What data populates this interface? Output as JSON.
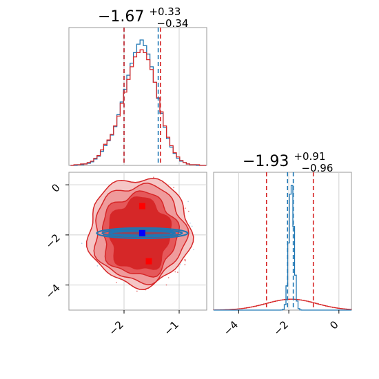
{
  "chart_data": [
    {
      "type": "histogram",
      "panel": "marginal-x",
      "title": {
        "value": "−1.67",
        "sup": "+0.33",
        "sub": "−0.34"
      },
      "xlim": [
        -3.0,
        -0.5
      ],
      "x_ticks": [
        -2,
        -1
      ],
      "bins_x": [
        -2.94,
        -2.88,
        -2.82,
        -2.76,
        -2.7,
        -2.64,
        -2.58,
        -2.52,
        -2.46,
        -2.4,
        -2.34,
        -2.28,
        -2.22,
        -2.16,
        -2.1,
        -2.04,
        -1.98,
        -1.92,
        -1.86,
        -1.8,
        -1.74,
        -1.68,
        -1.62,
        -1.56,
        -1.5,
        -1.44,
        -1.38,
        -1.32,
        -1.26,
        -1.2,
        -1.14,
        -1.08,
        -1.02,
        -0.96,
        -0.9,
        -0.84,
        -0.78,
        -0.72,
        -0.66,
        -0.6,
        -0.54
      ],
      "series": [
        {
          "color": "#1f77b4",
          "values": [
            0,
            0,
            1,
            1,
            2,
            3,
            5,
            9,
            13,
            20,
            28,
            35,
            43,
            55,
            72,
            90,
            108,
            128,
            145,
            160,
            172,
            178,
            170,
            158,
            140,
            118,
            95,
            74,
            54,
            38,
            26,
            17,
            10,
            6,
            4,
            2,
            1,
            1,
            0,
            0,
            0
          ],
          "quantiles": [
            -2.0,
            -1.67,
            -1.38
          ]
        },
        {
          "color": "#d62728",
          "values": [
            0,
            1,
            1,
            2,
            2,
            4,
            6,
            10,
            14,
            22,
            30,
            36,
            44,
            56,
            70,
            88,
            104,
            122,
            140,
            154,
            160,
            164,
            160,
            150,
            136,
            118,
            96,
            76,
            56,
            40,
            28,
            18,
            12,
            7,
            4,
            2,
            1,
            1,
            1,
            0,
            0
          ],
          "quantiles": [
            -2.0,
            -1.67,
            -1.34
          ]
        }
      ]
    },
    {
      "type": "histogram",
      "panel": "marginal-y",
      "title": {
        "value": "−1.93",
        "sup": "+0.91",
        "sub": "−0.96"
      },
      "xlim": [
        -5.0,
        0.5
      ],
      "x_ticks": [
        -4,
        -2,
        0
      ],
      "series": [
        {
          "color": "#1f77b4",
          "peak_x": -1.93,
          "peak_height": 1.0,
          "width": 0.1,
          "quantiles": [
            -2.05,
            -1.93,
            -1.82
          ]
        },
        {
          "color": "#d62728",
          "peak_x": -1.93,
          "peak_height": 0.085,
          "width": 1.0,
          "quantiles": [
            -2.89,
            -1.93,
            -1.02
          ]
        }
      ]
    },
    {
      "type": "contour",
      "panel": "joint",
      "xlim": [
        -3.0,
        -0.5
      ],
      "ylim": [
        -5.0,
        0.5
      ],
      "x_ticks": [
        -2,
        -1
      ],
      "y_ticks": [
        0,
        -2,
        -4
      ],
      "red_markers": [
        [
          -1.67,
          -0.85
        ],
        [
          -1.67,
          -1.93
        ],
        [
          -1.55,
          -3.05
        ]
      ],
      "blue_marker": [
        -1.67,
        -1.93
      ],
      "red_contour_levels": 4,
      "blue_contour_center": [
        -1.67,
        -1.93
      ]
    }
  ]
}
